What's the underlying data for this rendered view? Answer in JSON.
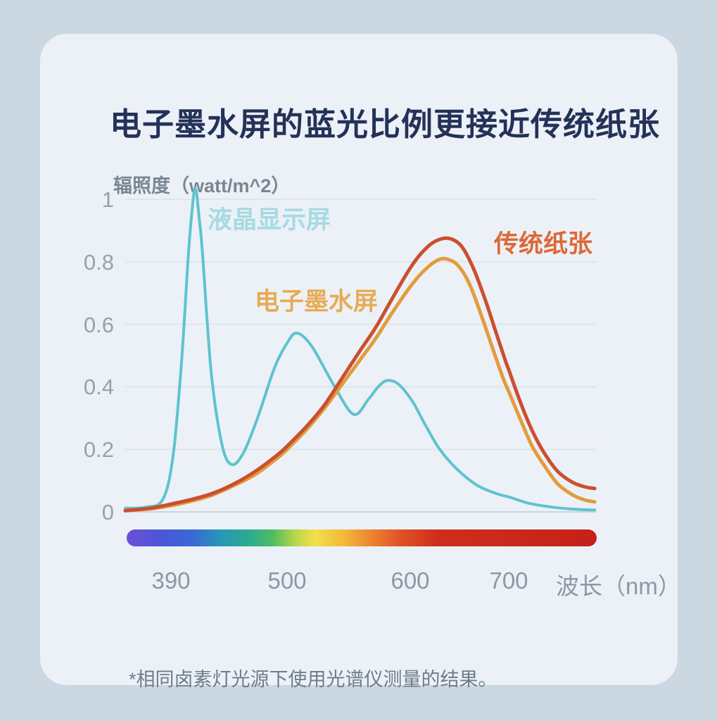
{
  "card": {
    "title": "电子墨水屏的蓝光比例更接近传统纸张",
    "footnote": "*相同卤素灯光源下使用光谱仪测量的结果。"
  },
  "chart_data": {
    "type": "line",
    "title": "电子墨水屏的蓝光比例更接近传统纸张",
    "ylabel": "辐照度（watt/m^2）",
    "xlabel": "波长（nm）",
    "xlim": [
      345,
      790
    ],
    "ylim": [
      0,
      1.05
    ],
    "grid": true,
    "legend_position": "inline-labels",
    "y_ticks": [
      {
        "label": "1",
        "value": 1.0
      },
      {
        "label": "0.8",
        "value": 0.8
      },
      {
        "label": "0.6",
        "value": 0.6
      },
      {
        "label": "0.4",
        "value": 0.4
      },
      {
        "label": "0.2",
        "value": 0.2
      },
      {
        "label": "0",
        "value": 0.0
      }
    ],
    "x_ticks": [
      {
        "label": "390",
        "value": 390
      },
      {
        "label": "500",
        "value": 500
      },
      {
        "label": "600",
        "value": 600
      },
      {
        "label": "700",
        "value": 700
      }
    ],
    "x_axis_anchor_wavelengths": [
      345,
      390,
      500,
      600,
      700,
      790
    ],
    "series": [
      {
        "name": "液晶显示屏",
        "color": "#5FC3CD",
        "label_color": "#A6DAE1",
        "line_width": 4,
        "points": [
          [
            345,
            0.012
          ],
          [
            365,
            0.015
          ],
          [
            382,
            0.04
          ],
          [
            392,
            0.18
          ],
          [
            400,
            0.48
          ],
          [
            406,
            0.8
          ],
          [
            409,
            0.93
          ],
          [
            413,
            1.035
          ],
          [
            417,
            0.93
          ],
          [
            420,
            0.82
          ],
          [
            428,
            0.45
          ],
          [
            438,
            0.22
          ],
          [
            447,
            0.152
          ],
          [
            458,
            0.185
          ],
          [
            472,
            0.3
          ],
          [
            488,
            0.46
          ],
          [
            500,
            0.54
          ],
          [
            508,
            0.572
          ],
          [
            520,
            0.53
          ],
          [
            538,
            0.405
          ],
          [
            554,
            0.312
          ],
          [
            566,
            0.36
          ],
          [
            574,
            0.4
          ],
          [
            581,
            0.42
          ],
          [
            590,
            0.41
          ],
          [
            602,
            0.355
          ],
          [
            615,
            0.28
          ],
          [
            630,
            0.2
          ],
          [
            648,
            0.135
          ],
          [
            668,
            0.085
          ],
          [
            688,
            0.058
          ],
          [
            700,
            0.048
          ],
          [
            720,
            0.028
          ],
          [
            745,
            0.015
          ],
          [
            770,
            0.008
          ],
          [
            788,
            0.006
          ]
        ]
      },
      {
        "name": "电子墨水屏",
        "color": "#E29C3E",
        "label_color": "#E7AB55",
        "line_width": 5,
        "points": [
          [
            345,
            0.004
          ],
          [
            370,
            0.01
          ],
          [
            390,
            0.02
          ],
          [
            410,
            0.035
          ],
          [
            430,
            0.055
          ],
          [
            450,
            0.085
          ],
          [
            470,
            0.12
          ],
          [
            490,
            0.17
          ],
          [
            500,
            0.2
          ],
          [
            515,
            0.26
          ],
          [
            530,
            0.33
          ],
          [
            545,
            0.41
          ],
          [
            560,
            0.49
          ],
          [
            572,
            0.555
          ],
          [
            585,
            0.635
          ],
          [
            600,
            0.72
          ],
          [
            612,
            0.765
          ],
          [
            625,
            0.8
          ],
          [
            635,
            0.81
          ],
          [
            648,
            0.79
          ],
          [
            660,
            0.73
          ],
          [
            672,
            0.63
          ],
          [
            684,
            0.52
          ],
          [
            694,
            0.43
          ],
          [
            700,
            0.385
          ],
          [
            712,
            0.295
          ],
          [
            724,
            0.21
          ],
          [
            736,
            0.15
          ],
          [
            750,
            0.09
          ],
          [
            765,
            0.055
          ],
          [
            778,
            0.038
          ],
          [
            788,
            0.032
          ]
        ]
      },
      {
        "name": "传统纸张",
        "color": "#CB4F2F",
        "label_color": "#DE6836",
        "line_width": 5,
        "points": [
          [
            345,
            0.004
          ],
          [
            370,
            0.012
          ],
          [
            390,
            0.025
          ],
          [
            410,
            0.04
          ],
          [
            430,
            0.06
          ],
          [
            450,
            0.09
          ],
          [
            470,
            0.13
          ],
          [
            490,
            0.18
          ],
          [
            500,
            0.21
          ],
          [
            515,
            0.27
          ],
          [
            530,
            0.34
          ],
          [
            545,
            0.43
          ],
          [
            560,
            0.52
          ],
          [
            572,
            0.59
          ],
          [
            585,
            0.68
          ],
          [
            600,
            0.78
          ],
          [
            612,
            0.83
          ],
          [
            625,
            0.865
          ],
          [
            639,
            0.875
          ],
          [
            652,
            0.85
          ],
          [
            664,
            0.78
          ],
          [
            676,
            0.68
          ],
          [
            688,
            0.565
          ],
          [
            697,
            0.48
          ],
          [
            700,
            0.455
          ],
          [
            712,
            0.35
          ],
          [
            724,
            0.26
          ],
          [
            736,
            0.19
          ],
          [
            750,
            0.13
          ],
          [
            765,
            0.095
          ],
          [
            778,
            0.08
          ],
          [
            788,
            0.075
          ]
        ]
      }
    ],
    "grid_color": "#DFE5EB",
    "zero_line_color": "#CCD5DC",
    "spectrum_bar": {
      "stops": [
        {
          "pos": 0.0,
          "color": "#6E4FD6"
        },
        {
          "pos": 0.07,
          "color": "#4E55D8"
        },
        {
          "pos": 0.14,
          "color": "#3968D5"
        },
        {
          "pos": 0.2,
          "color": "#2797B8"
        },
        {
          "pos": 0.26,
          "color": "#2BAB8F"
        },
        {
          "pos": 0.31,
          "color": "#4FBC62"
        },
        {
          "pos": 0.36,
          "color": "#B8D84B"
        },
        {
          "pos": 0.4,
          "color": "#F2E049"
        },
        {
          "pos": 0.46,
          "color": "#F4B93A"
        },
        {
          "pos": 0.52,
          "color": "#EE8430"
        },
        {
          "pos": 0.58,
          "color": "#E05427"
        },
        {
          "pos": 0.66,
          "color": "#CE2E1D"
        },
        {
          "pos": 1.0,
          "color": "#C62119"
        }
      ]
    },
    "colors": {
      "page_background": "#CBD7E1",
      "card_background": "#ECF1F7",
      "title_text": "#243158",
      "axis_text": "#8C98A4"
    }
  }
}
